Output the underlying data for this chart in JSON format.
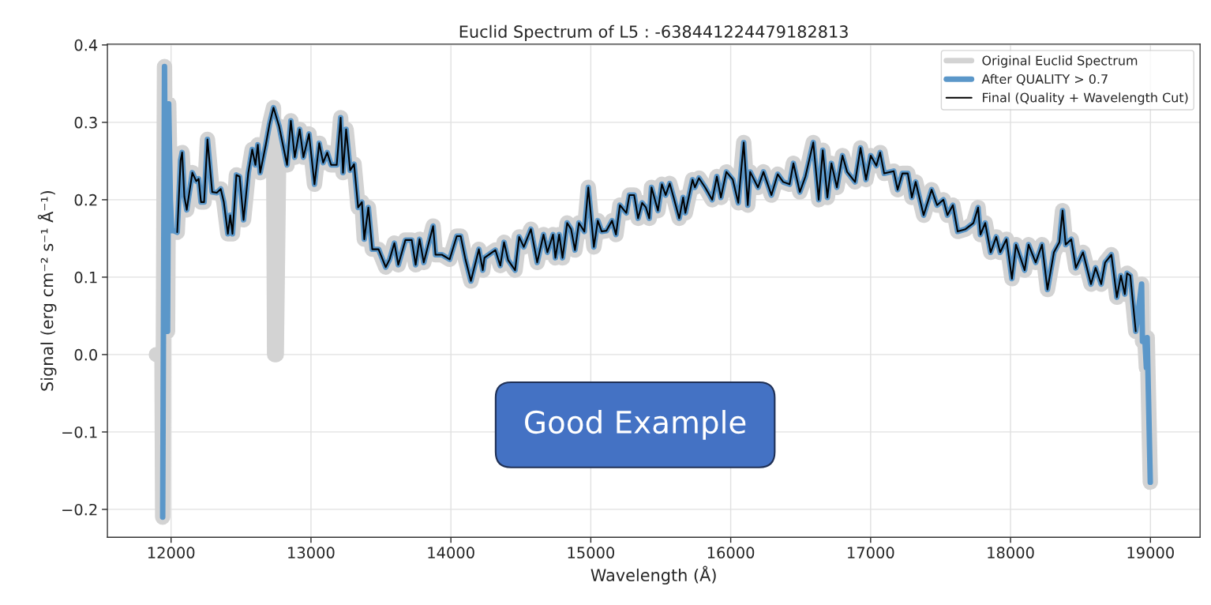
{
  "chart_data": {
    "type": "line",
    "title": "Euclid Spectrum of L5 : -638441224479182813",
    "xlabel": "Wavelength (Å)",
    "ylabel": "Signal (erg cm⁻² s⁻¹ Å⁻¹)",
    "xlim": [
      11545,
      19355
    ],
    "ylim": [
      -0.236,
      0.401
    ],
    "xticks": [
      12000,
      13000,
      14000,
      15000,
      16000,
      17000,
      18000,
      19000
    ],
    "yticks": [
      {
        "value": -0.2,
        "label": "−0.2"
      },
      {
        "value": -0.1,
        "label": "−0.1"
      },
      {
        "value": 0.0,
        "label": "0.0"
      },
      {
        "value": 0.1,
        "label": "0.1"
      },
      {
        "value": 0.2,
        "label": "0.2"
      },
      {
        "value": 0.3,
        "label": "0.3"
      },
      {
        "value": 0.4,
        "label": "0.4"
      }
    ],
    "grid": true,
    "legend": "top right",
    "annotations": [
      "Good Example"
    ],
    "series": [
      {
        "name": "Original Euclid Spectrum",
        "color": "#d3d3d3",
        "x": [
          11895,
          11935,
          11940,
          11953,
          11965,
          11975,
          11983,
          11995,
          12005,
          12020,
          12044,
          12068,
          12079,
          12095,
          12112,
          12152,
          12180,
          12197,
          12214,
          12236,
          12260,
          12294,
          12327,
          12355,
          12377,
          12406,
          12423,
          12439,
          12467,
          12490,
          12518,
          12552,
          12580,
          12603,
          12620,
          12637,
          12677,
          12704,
          12732,
          12740,
          12752,
          12772,
          12829,
          12856,
          12884,
          12919,
          12946,
          12986,
          13025,
          13059,
          13087,
          13116,
          13144,
          13184,
          13212,
          13229,
          13251,
          13280,
          13308,
          13337,
          13364,
          13381,
          13410,
          13438,
          13483,
          13534,
          13562,
          13596,
          13624,
          13675,
          13720,
          13748,
          13776,
          13806,
          13873,
          13890,
          13936,
          13991,
          14042,
          14070,
          14104,
          14143,
          14200,
          14228,
          14240,
          14318,
          14353,
          14380,
          14409,
          14459,
          14488,
          14521,
          14572,
          14617,
          14662,
          14690,
          14730,
          14747,
          14774,
          14798,
          14831,
          14859,
          14887,
          14915,
          14954,
          14982,
          15022,
          15050,
          15078,
          15112,
          15152,
          15180,
          15208,
          15254,
          15276,
          15310,
          15338,
          15367,
          15394,
          15418,
          15434,
          15480,
          15508,
          15535,
          15564,
          15592,
          15632,
          15660,
          15676,
          15727,
          15744,
          15773,
          15817,
          15868,
          15901,
          15930,
          15969,
          16015,
          16054,
          16093,
          16122,
          16139,
          16195,
          16234,
          16291,
          16336,
          16375,
          16421,
          16448,
          16494,
          16534,
          16590,
          16629,
          16658,
          16691,
          16720,
          16759,
          16799,
          16832,
          16889,
          16928,
          16967,
          17001,
          17041,
          17068,
          17097,
          17165,
          17193,
          17227,
          17266,
          17295,
          17322,
          17379,
          17436,
          17475,
          17520,
          17549,
          17588,
          17622,
          17678,
          17735,
          17768,
          17785,
          17819,
          17858,
          17898,
          17926,
          17971,
          18010,
          18039,
          18101,
          18129,
          18180,
          18225,
          18264,
          18310,
          18349,
          18372,
          18394,
          18434,
          18467,
          18518,
          18575,
          18608,
          18648,
          18676,
          18721,
          18760,
          18789,
          18817,
          18833,
          18856,
          18895,
          18937,
          18943,
          18960,
          18971,
          18977,
          18999
        ],
        "values": [
          0.0,
          0.0,
          -0.21,
          0.372,
          0.03,
          0.03,
          0.324,
          0.2,
          0.16,
          0.16,
          0.158,
          0.251,
          0.261,
          0.204,
          0.187,
          0.235,
          0.224,
          0.227,
          0.197,
          0.197,
          0.278,
          0.21,
          0.209,
          0.214,
          0.197,
          0.156,
          0.18,
          0.156,
          0.232,
          0.23,
          0.174,
          0.235,
          0.265,
          0.245,
          0.271,
          0.235,
          0.271,
          0.298,
          0.319,
          0.0,
          0.0,
          0.295,
          0.245,
          0.302,
          0.255,
          0.291,
          0.255,
          0.285,
          0.22,
          0.273,
          0.248,
          0.261,
          0.245,
          0.245,
          0.306,
          0.235,
          0.291,
          0.238,
          0.246,
          0.19,
          0.197,
          0.149,
          0.19,
          0.136,
          0.136,
          0.113,
          0.123,
          0.144,
          0.116,
          0.148,
          0.148,
          0.116,
          0.149,
          0.119,
          0.166,
          0.129,
          0.129,
          0.123,
          0.153,
          0.153,
          0.123,
          0.095,
          0.136,
          0.109,
          0.125,
          0.135,
          0.115,
          0.145,
          0.122,
          0.109,
          0.152,
          0.139,
          0.162,
          0.119,
          0.155,
          0.132,
          0.155,
          0.125,
          0.155,
          0.125,
          0.17,
          0.162,
          0.135,
          0.17,
          0.159,
          0.216,
          0.139,
          0.173,
          0.159,
          0.16,
          0.173,
          0.155,
          0.193,
          0.183,
          0.206,
          0.206,
          0.176,
          0.196,
          0.19,
          0.176,
          0.216,
          0.186,
          0.22,
          0.206,
          0.221,
          0.203,
          0.176,
          0.203,
          0.183,
          0.226,
          0.216,
          0.228,
          0.216,
          0.2,
          0.23,
          0.203,
          0.236,
          0.226,
          0.196,
          0.274,
          0.193,
          0.236,
          0.216,
          0.236,
          0.206,
          0.233,
          0.223,
          0.22,
          0.247,
          0.21,
          0.23,
          0.274,
          0.2,
          0.264,
          0.203,
          0.247,
          0.216,
          0.257,
          0.236,
          0.223,
          0.267,
          0.226,
          0.257,
          0.244,
          0.261,
          0.234,
          0.237,
          0.213,
          0.234,
          0.234,
          0.203,
          0.223,
          0.18,
          0.213,
          0.193,
          0.2,
          0.18,
          0.193,
          0.159,
          0.162,
          0.17,
          0.19,
          0.155,
          0.17,
          0.132,
          0.152,
          0.132,
          0.149,
          0.098,
          0.142,
          0.109,
          0.142,
          0.119,
          0.142,
          0.084,
          0.132,
          0.145,
          0.186,
          0.142,
          0.149,
          0.112,
          0.132,
          0.091,
          0.112,
          0.091,
          0.119,
          0.129,
          0.074,
          0.102,
          0.078,
          0.105,
          0.102,
          0.03,
          0.091,
          0.017,
          0.02,
          -0.017,
          0.022,
          -0.165
        ]
      },
      {
        "name": "After QUALITY > 0.7",
        "color": "#5b97c9",
        "x": [
          11940,
          11953,
          11965,
          11975,
          11983,
          11995,
          12005,
          12020,
          12044,
          12068,
          12079,
          12095,
          12112,
          12152,
          12180,
          12197,
          12214,
          12236,
          12260,
          12294,
          12327,
          12355,
          12377,
          12406,
          12423,
          12439,
          12467,
          12490,
          12518,
          12552,
          12580,
          12603,
          12620,
          12637,
          12677,
          12704,
          12732,
          12772,
          12829,
          12856,
          12884,
          12919,
          12946,
          12986,
          13025,
          13059,
          13087,
          13116,
          13144,
          13184,
          13212,
          13229,
          13251,
          13280,
          13308,
          13337,
          13364,
          13381,
          13410,
          13438,
          13483,
          13534,
          13562,
          13596,
          13624,
          13675,
          13720,
          13748,
          13776,
          13806,
          13873,
          13890,
          13936,
          13991,
          14042,
          14070,
          14104,
          14143,
          14200,
          14228,
          14240,
          14318,
          14353,
          14380,
          14409,
          14459,
          14488,
          14521,
          14572,
          14617,
          14662,
          14690,
          14730,
          14747,
          14774,
          14798,
          14831,
          14859,
          14887,
          14915,
          14954,
          14982,
          15022,
          15050,
          15078,
          15112,
          15152,
          15180,
          15208,
          15254,
          15276,
          15310,
          15338,
          15367,
          15394,
          15418,
          15434,
          15480,
          15508,
          15535,
          15564,
          15592,
          15632,
          15660,
          15676,
          15727,
          15744,
          15773,
          15817,
          15868,
          15901,
          15930,
          15969,
          16015,
          16054,
          16093,
          16122,
          16139,
          16195,
          16234,
          16291,
          16336,
          16375,
          16421,
          16448,
          16494,
          16534,
          16590,
          16629,
          16658,
          16691,
          16720,
          16759,
          16799,
          16832,
          16889,
          16928,
          16967,
          17001,
          17041,
          17068,
          17097,
          17165,
          17193,
          17227,
          17266,
          17295,
          17322,
          17379,
          17436,
          17475,
          17520,
          17549,
          17588,
          17622,
          17678,
          17735,
          17768,
          17785,
          17819,
          17858,
          17898,
          17926,
          17971,
          18010,
          18039,
          18101,
          18129,
          18180,
          18225,
          18264,
          18310,
          18349,
          18372,
          18394,
          18434,
          18467,
          18518,
          18575,
          18608,
          18648,
          18676,
          18721,
          18760,
          18789,
          18817,
          18833,
          18856,
          18895,
          18937,
          18943,
          18960,
          18971,
          18977,
          18999
        ],
        "values": [
          -0.21,
          0.372,
          0.03,
          0.03,
          0.324,
          0.2,
          0.16,
          0.16,
          0.158,
          0.251,
          0.261,
          0.204,
          0.187,
          0.235,
          0.224,
          0.227,
          0.197,
          0.197,
          0.278,
          0.21,
          0.209,
          0.214,
          0.197,
          0.156,
          0.18,
          0.156,
          0.232,
          0.23,
          0.174,
          0.235,
          0.265,
          0.245,
          0.271,
          0.235,
          0.271,
          0.298,
          0.319,
          0.295,
          0.245,
          0.302,
          0.255,
          0.291,
          0.255,
          0.285,
          0.22,
          0.273,
          0.248,
          0.261,
          0.245,
          0.245,
          0.306,
          0.235,
          0.291,
          0.238,
          0.246,
          0.19,
          0.197,
          0.149,
          0.19,
          0.136,
          0.136,
          0.113,
          0.123,
          0.144,
          0.116,
          0.148,
          0.148,
          0.116,
          0.149,
          0.119,
          0.166,
          0.129,
          0.129,
          0.123,
          0.153,
          0.153,
          0.123,
          0.095,
          0.136,
          0.109,
          0.125,
          0.135,
          0.115,
          0.145,
          0.122,
          0.109,
          0.152,
          0.139,
          0.162,
          0.119,
          0.155,
          0.132,
          0.155,
          0.125,
          0.155,
          0.125,
          0.17,
          0.162,
          0.135,
          0.17,
          0.159,
          0.216,
          0.139,
          0.173,
          0.159,
          0.16,
          0.173,
          0.155,
          0.193,
          0.183,
          0.206,
          0.206,
          0.176,
          0.196,
          0.19,
          0.176,
          0.216,
          0.186,
          0.22,
          0.206,
          0.221,
          0.203,
          0.176,
          0.203,
          0.183,
          0.226,
          0.216,
          0.228,
          0.216,
          0.2,
          0.23,
          0.203,
          0.236,
          0.226,
          0.196,
          0.274,
          0.193,
          0.236,
          0.216,
          0.236,
          0.206,
          0.233,
          0.223,
          0.22,
          0.247,
          0.21,
          0.23,
          0.274,
          0.2,
          0.264,
          0.203,
          0.247,
          0.216,
          0.257,
          0.236,
          0.223,
          0.267,
          0.226,
          0.257,
          0.244,
          0.261,
          0.234,
          0.237,
          0.213,
          0.234,
          0.234,
          0.203,
          0.223,
          0.18,
          0.213,
          0.193,
          0.2,
          0.18,
          0.193,
          0.159,
          0.162,
          0.17,
          0.19,
          0.155,
          0.17,
          0.132,
          0.152,
          0.132,
          0.149,
          0.098,
          0.142,
          0.109,
          0.142,
          0.119,
          0.142,
          0.084,
          0.132,
          0.145,
          0.186,
          0.142,
          0.149,
          0.112,
          0.132,
          0.091,
          0.112,
          0.091,
          0.119,
          0.129,
          0.074,
          0.102,
          0.078,
          0.105,
          0.102,
          0.03,
          0.091,
          0.017,
          0.02,
          -0.017,
          0.022,
          -0.165
        ]
      },
      {
        "name": "Final (Quality + Wavelength Cut)",
        "color": "#000000",
        "x": [
          12044,
          12068,
          12079,
          12095,
          12112,
          12152,
          12180,
          12197,
          12214,
          12236,
          12260,
          12294,
          12327,
          12355,
          12377,
          12406,
          12423,
          12439,
          12467,
          12490,
          12518,
          12552,
          12580,
          12603,
          12620,
          12637,
          12677,
          12704,
          12732,
          12772,
          12829,
          12856,
          12884,
          12919,
          12946,
          12986,
          13025,
          13059,
          13087,
          13116,
          13144,
          13184,
          13212,
          13229,
          13251,
          13280,
          13308,
          13337,
          13364,
          13381,
          13410,
          13438,
          13483,
          13534,
          13562,
          13596,
          13624,
          13675,
          13720,
          13748,
          13776,
          13806,
          13873,
          13890,
          13936,
          13991,
          14042,
          14070,
          14104,
          14143,
          14200,
          14228,
          14240,
          14318,
          14353,
          14380,
          14409,
          14459,
          14488,
          14521,
          14572,
          14617,
          14662,
          14690,
          14730,
          14747,
          14774,
          14798,
          14831,
          14859,
          14887,
          14915,
          14954,
          14982,
          15022,
          15050,
          15078,
          15112,
          15152,
          15180,
          15208,
          15254,
          15276,
          15310,
          15338,
          15367,
          15394,
          15418,
          15434,
          15480,
          15508,
          15535,
          15564,
          15592,
          15632,
          15660,
          15676,
          15727,
          15744,
          15773,
          15817,
          15868,
          15901,
          15930,
          15969,
          16015,
          16054,
          16093,
          16122,
          16139,
          16195,
          16234,
          16291,
          16336,
          16375,
          16421,
          16448,
          16494,
          16534,
          16590,
          16629,
          16658,
          16691,
          16720,
          16759,
          16799,
          16832,
          16889,
          16928,
          16967,
          17001,
          17041,
          17068,
          17097,
          17165,
          17193,
          17227,
          17266,
          17295,
          17322,
          17379,
          17436,
          17475,
          17520,
          17549,
          17588,
          17622,
          17678,
          17735,
          17768,
          17785,
          17819,
          17858,
          17898,
          17926,
          17971,
          18010,
          18039,
          18101,
          18129,
          18180,
          18225,
          18264,
          18310,
          18349,
          18372,
          18394,
          18434,
          18467,
          18518,
          18575,
          18608,
          18648,
          18676,
          18721,
          18760,
          18789,
          18817,
          18833,
          18856,
          18895
        ],
        "values": [
          0.158,
          0.251,
          0.261,
          0.204,
          0.187,
          0.235,
          0.224,
          0.227,
          0.197,
          0.197,
          0.278,
          0.21,
          0.209,
          0.214,
          0.197,
          0.156,
          0.18,
          0.156,
          0.232,
          0.23,
          0.174,
          0.235,
          0.265,
          0.245,
          0.271,
          0.235,
          0.271,
          0.298,
          0.319,
          0.295,
          0.245,
          0.302,
          0.255,
          0.291,
          0.255,
          0.285,
          0.22,
          0.273,
          0.248,
          0.261,
          0.245,
          0.245,
          0.306,
          0.235,
          0.291,
          0.238,
          0.246,
          0.19,
          0.197,
          0.149,
          0.19,
          0.136,
          0.136,
          0.113,
          0.123,
          0.144,
          0.116,
          0.148,
          0.148,
          0.116,
          0.149,
          0.119,
          0.166,
          0.129,
          0.129,
          0.123,
          0.153,
          0.153,
          0.123,
          0.095,
          0.136,
          0.109,
          0.125,
          0.135,
          0.115,
          0.145,
          0.122,
          0.109,
          0.152,
          0.139,
          0.162,
          0.119,
          0.155,
          0.132,
          0.155,
          0.125,
          0.155,
          0.125,
          0.17,
          0.162,
          0.135,
          0.17,
          0.159,
          0.216,
          0.139,
          0.173,
          0.159,
          0.16,
          0.173,
          0.155,
          0.193,
          0.183,
          0.206,
          0.206,
          0.176,
          0.196,
          0.19,
          0.176,
          0.216,
          0.186,
          0.22,
          0.206,
          0.221,
          0.203,
          0.176,
          0.203,
          0.183,
          0.226,
          0.216,
          0.228,
          0.216,
          0.2,
          0.23,
          0.203,
          0.236,
          0.226,
          0.196,
          0.274,
          0.193,
          0.236,
          0.216,
          0.236,
          0.206,
          0.233,
          0.223,
          0.22,
          0.247,
          0.21,
          0.23,
          0.274,
          0.2,
          0.264,
          0.203,
          0.247,
          0.216,
          0.257,
          0.236,
          0.223,
          0.267,
          0.226,
          0.257,
          0.244,
          0.261,
          0.234,
          0.237,
          0.213,
          0.234,
          0.234,
          0.203,
          0.223,
          0.18,
          0.213,
          0.193,
          0.2,
          0.18,
          0.193,
          0.159,
          0.162,
          0.17,
          0.19,
          0.155,
          0.17,
          0.132,
          0.152,
          0.132,
          0.149,
          0.098,
          0.142,
          0.109,
          0.142,
          0.119,
          0.142,
          0.084,
          0.132,
          0.145,
          0.186,
          0.142,
          0.149,
          0.112,
          0.132,
          0.091,
          0.112,
          0.091,
          0.119,
          0.129,
          0.074,
          0.102,
          0.078,
          0.105,
          0.102,
          0.03
        ]
      }
    ]
  }
}
